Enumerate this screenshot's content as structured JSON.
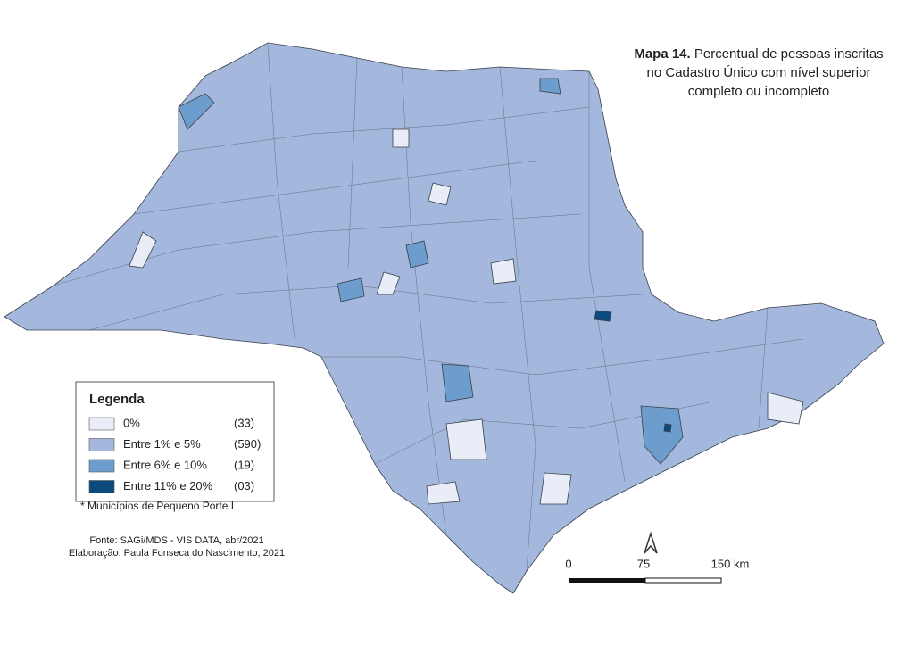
{
  "title": {
    "label": "Mapa 14.",
    "text": "Percentual de pessoas inscritas no Cadastro Único com nível superior completo ou incompleto"
  },
  "legend": {
    "title": "Legenda",
    "items": [
      {
        "label": "0%",
        "count": "(33)",
        "color": "#e8edf8"
      },
      {
        "label": "Entre 1% e 5%",
        "count": "(590)",
        "color": "#a3b8dc"
      },
      {
        "label": "Entre 6% e 10%",
        "count": "(19)",
        "color": "#6c9dcc"
      },
      {
        "label": "Entre 11% e 20%",
        "count": "(03)",
        "color": "#0d4a7e"
      }
    ]
  },
  "note": "* Municípios de Pequeno Porte I",
  "source": [
    "Fonte: SAGi/MDS - VIS DATA, abr/2021",
    "Elaboração: Paula Fonseca do Nascimento, 2021"
  ],
  "scale_bar": {
    "labels": [
      "0",
      "75",
      "150 km"
    ]
  }
}
